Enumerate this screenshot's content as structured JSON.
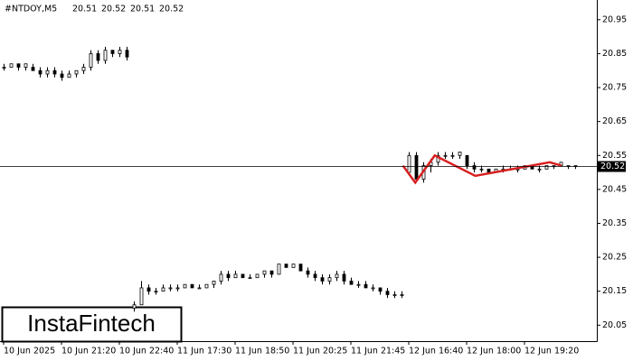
{
  "chart_data": {
    "type": "candlestick",
    "title": "#NTDOY,M5",
    "quote": [
      20.51,
      20.52,
      20.51,
      20.52
    ],
    "watermark": "InstaFintech",
    "ylim": [
      20.003,
      21.008
    ],
    "yticks": [
      20.95,
      20.85,
      20.75,
      20.65,
      20.55,
      20.45,
      20.35,
      20.25,
      20.15,
      20.05
    ],
    "xlim": [
      0,
      82.5
    ],
    "xticks": [
      {
        "value": 0,
        "label": "10 Jun 2025"
      },
      {
        "value": 8,
        "label": "10 Jun 21:20"
      },
      {
        "value": 16,
        "label": "10 Jun 22:40"
      },
      {
        "value": 24,
        "label": "11 Jun 17:30"
      },
      {
        "value": 32,
        "label": "11 Jun 18:50"
      },
      {
        "value": 40,
        "label": "11 Jun 20:25"
      },
      {
        "value": 48,
        "label": "11 Jun 21:45"
      },
      {
        "value": 56,
        "label": "12 Jun 16:40"
      },
      {
        "value": 64,
        "label": "12 Jun 18:00"
      },
      {
        "value": 72,
        "label": "12 Jun 19:20"
      }
    ],
    "price": 20.52,
    "ohlc": [
      [
        20.81,
        20.82,
        20.8,
        20.81
      ],
      [
        20.81,
        20.82,
        20.81,
        20.82
      ],
      [
        20.82,
        20.82,
        20.8,
        20.81
      ],
      [
        20.81,
        20.82,
        20.8,
        20.82
      ],
      [
        20.81,
        20.82,
        20.8,
        20.8
      ],
      [
        20.8,
        20.81,
        20.78,
        20.79
      ],
      [
        20.79,
        20.81,
        20.78,
        20.8
      ],
      [
        20.8,
        20.81,
        20.78,
        20.79
      ],
      [
        20.79,
        20.8,
        20.77,
        20.78
      ],
      [
        20.78,
        20.8,
        20.78,
        20.79
      ],
      [
        20.79,
        20.8,
        20.78,
        20.8
      ],
      [
        20.8,
        20.82,
        20.79,
        20.81
      ],
      [
        20.81,
        20.86,
        20.8,
        20.85
      ],
      [
        20.85,
        20.86,
        20.82,
        20.83
      ],
      [
        20.83,
        20.87,
        20.82,
        20.86
      ],
      [
        20.86,
        20.86,
        20.84,
        20.85
      ],
      [
        20.85,
        20.87,
        20.84,
        20.86
      ],
      [
        20.86,
        20.87,
        20.83,
        20.84
      ],
      [
        20.1,
        20.12,
        20.09,
        20.11
      ],
      [
        20.11,
        20.18,
        20.11,
        20.16
      ],
      [
        20.16,
        20.17,
        20.14,
        20.15
      ],
      [
        20.15,
        20.16,
        20.14,
        20.15
      ],
      [
        20.15,
        20.17,
        20.15,
        20.16
      ],
      [
        20.16,
        20.17,
        20.15,
        20.16
      ],
      [
        20.16,
        20.17,
        20.15,
        20.16
      ],
      [
        20.16,
        20.17,
        20.16,
        20.17
      ],
      [
        20.17,
        20.17,
        20.16,
        20.16
      ],
      [
        20.16,
        20.17,
        20.16,
        20.16
      ],
      [
        20.16,
        20.17,
        20.16,
        20.17
      ],
      [
        20.17,
        20.18,
        20.16,
        20.18
      ],
      [
        20.18,
        20.21,
        20.17,
        20.2
      ],
      [
        20.2,
        20.21,
        20.18,
        20.19
      ],
      [
        20.19,
        20.21,
        20.19,
        20.2
      ],
      [
        20.2,
        20.2,
        20.19,
        20.19
      ],
      [
        20.19,
        20.2,
        20.19,
        20.19
      ],
      [
        20.19,
        20.2,
        20.19,
        20.2
      ],
      [
        20.2,
        20.21,
        20.19,
        20.21
      ],
      [
        20.21,
        20.21,
        20.19,
        20.2
      ],
      [
        20.2,
        20.23,
        20.2,
        20.23
      ],
      [
        20.23,
        20.23,
        20.22,
        20.22
      ],
      [
        20.22,
        20.23,
        20.22,
        20.23
      ],
      [
        20.23,
        20.23,
        20.21,
        20.21
      ],
      [
        20.21,
        20.22,
        20.19,
        20.2
      ],
      [
        20.2,
        20.21,
        20.18,
        20.19
      ],
      [
        20.19,
        20.2,
        20.17,
        20.18
      ],
      [
        20.18,
        20.2,
        20.17,
        20.19
      ],
      [
        20.19,
        20.21,
        20.18,
        20.2
      ],
      [
        20.2,
        20.21,
        20.17,
        20.18
      ],
      [
        20.18,
        20.19,
        20.17,
        20.17
      ],
      [
        20.17,
        20.18,
        20.16,
        20.17
      ],
      [
        20.17,
        20.18,
        20.16,
        20.16
      ],
      [
        20.16,
        20.17,
        20.15,
        20.16
      ],
      [
        20.16,
        20.16,
        20.14,
        20.15
      ],
      [
        20.15,
        20.16,
        20.13,
        20.14
      ],
      [
        20.14,
        20.15,
        20.13,
        20.14
      ],
      [
        20.14,
        20.15,
        20.13,
        20.14
      ],
      [
        20.5,
        20.56,
        20.49,
        20.55
      ],
      [
        20.55,
        20.56,
        20.47,
        20.48
      ],
      [
        20.48,
        20.53,
        20.47,
        20.52
      ],
      [
        20.52,
        20.54,
        20.5,
        20.53
      ],
      [
        20.53,
        20.56,
        20.52,
        20.55
      ],
      [
        20.55,
        20.56,
        20.54,
        20.55
      ],
      [
        20.55,
        20.56,
        20.54,
        20.55
      ],
      [
        20.55,
        20.56,
        20.54,
        20.56
      ],
      [
        20.55,
        20.55,
        20.51,
        20.52
      ],
      [
        20.52,
        20.53,
        20.5,
        20.51
      ],
      [
        20.51,
        20.52,
        20.5,
        20.51
      ],
      [
        20.51,
        20.51,
        20.5,
        20.5
      ],
      [
        20.5,
        20.51,
        20.5,
        20.51
      ],
      [
        20.51,
        20.52,
        20.5,
        20.51
      ],
      [
        20.51,
        20.52,
        20.51,
        20.51
      ],
      [
        20.51,
        20.52,
        20.5,
        20.51
      ],
      [
        20.51,
        20.52,
        20.51,
        20.52
      ],
      [
        20.52,
        20.52,
        20.51,
        20.51
      ],
      [
        20.51,
        20.52,
        20.5,
        20.51
      ],
      [
        20.51,
        20.52,
        20.51,
        20.52
      ],
      [
        20.52,
        20.52,
        20.51,
        20.52
      ],
      [
        20.52,
        20.53,
        20.52,
        20.53
      ],
      [
        20.52,
        20.52,
        20.51,
        20.52
      ],
      [
        20.52,
        20.52,
        20.51,
        20.52
      ]
    ],
    "pattern": {
      "color": "#d92020",
      "x": [
        55.7,
        57.4,
        60.1,
        65.7,
        76,
        77.6
      ],
      "values": [
        20.52,
        20.47,
        20.55,
        20.49,
        20.53,
        20.52
      ]
    }
  }
}
